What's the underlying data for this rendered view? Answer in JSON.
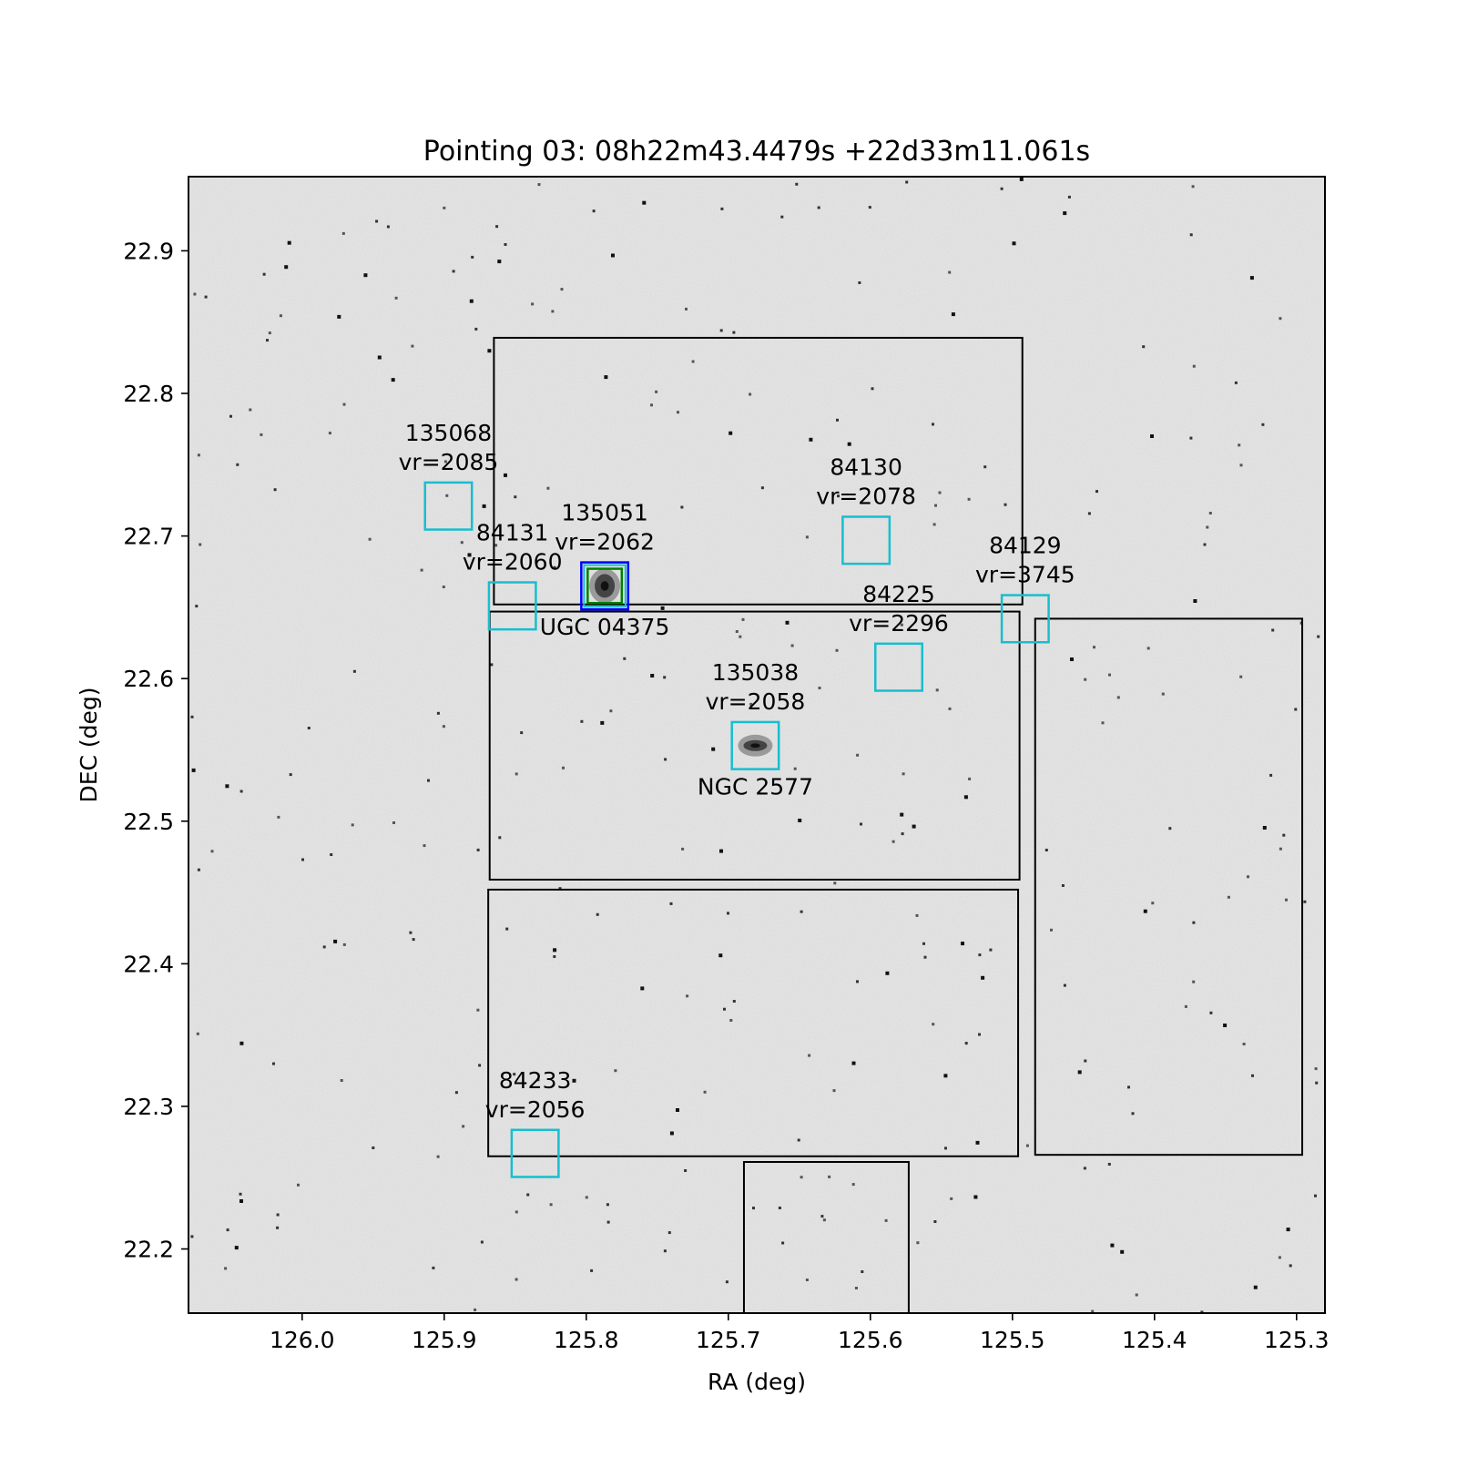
{
  "chart_data": {
    "type": "scatter",
    "title": "Pointing 03: 08h22m43.4479s +22d33m11.061s",
    "xlabel": "RA (deg)",
    "ylabel": "DEC (deg)",
    "xlim": [
      126.08,
      125.28
    ],
    "ylim": [
      22.155,
      22.952
    ],
    "x_inverted": true,
    "grid": false,
    "background": "grayscale sky image with stars",
    "xticks": [
      126.0,
      125.9,
      125.8,
      125.7,
      125.6,
      125.5,
      125.4,
      125.3
    ],
    "xtick_labels": [
      "126.0",
      "125.9",
      "125.8",
      "125.7",
      "125.6",
      "125.5",
      "125.4",
      "125.3"
    ],
    "yticks": [
      22.2,
      22.3,
      22.4,
      22.5,
      22.6,
      22.7,
      22.8,
      22.9
    ],
    "ytick_labels": [
      "22.2",
      "22.3",
      "22.4",
      "22.5",
      "22.6",
      "22.7",
      "22.8",
      "22.9"
    ],
    "footprints": [
      {
        "ra_min": 125.493,
        "ra_max": 125.865,
        "dec_min": 22.652,
        "dec_max": 22.839
      },
      {
        "ra_min": 125.495,
        "ra_max": 125.868,
        "dec_min": 22.459,
        "dec_max": 22.647
      },
      {
        "ra_min": 125.496,
        "ra_max": 125.869,
        "dec_min": 22.265,
        "dec_max": 22.452
      },
      {
        "ra_min": 125.296,
        "ra_max": 125.484,
        "dec_min": 22.266,
        "dec_max": 22.642
      },
      {
        "ra_min": 125.573,
        "ra_max": 125.689,
        "dec_min": 22.155,
        "dec_max": 22.261
      }
    ],
    "sources": [
      {
        "id": "135068",
        "vr": "vr=2085",
        "ra": 125.897,
        "dec": 22.721
      },
      {
        "id": "84131",
        "vr": "vr=2060",
        "ra": 125.852,
        "dec": 22.651
      },
      {
        "id": "135051",
        "vr": "vr=2062",
        "ra": 125.787,
        "dec": 22.665
      },
      {
        "id": "84130",
        "vr": "vr=2078",
        "ra": 125.603,
        "dec": 22.697
      },
      {
        "id": "84129",
        "vr": "vr=3745",
        "ra": 125.491,
        "dec": 22.642
      },
      {
        "id": "84225",
        "vr": "vr=2296",
        "ra": 125.58,
        "dec": 22.608
      },
      {
        "id": "135038",
        "vr": "vr=2058",
        "ra": 125.681,
        "dec": 22.553
      },
      {
        "id": "84233",
        "vr": "vr=2056",
        "ra": 125.836,
        "dec": 22.267
      }
    ],
    "source_box_size_deg": 0.033,
    "named_galaxies": [
      {
        "name": "UGC 04375",
        "ra": 125.787,
        "dec": 22.665
      },
      {
        "name": "NGC 2577",
        "ra": 125.681,
        "dec": 22.553
      }
    ],
    "colors": {
      "source_box": "#17becf",
      "footprint": "#000000",
      "highlight_outer": "#0000ff",
      "highlight_inner": "#008000",
      "sky": "#d4d4d4"
    }
  }
}
